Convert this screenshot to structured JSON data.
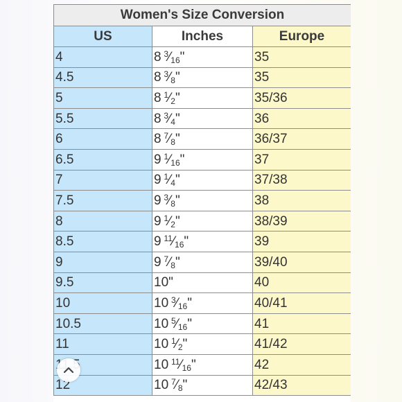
{
  "table": {
    "title": "Women's Size Conversion",
    "headers": [
      "US",
      "Inches",
      "Europe"
    ],
    "rows": [
      {
        "us": "4",
        "inches": {
          "whole": "8",
          "num": "3",
          "den": "16"
        },
        "eu": "35"
      },
      {
        "us": "4.5",
        "inches": {
          "whole": "8",
          "num": "3",
          "den": "8"
        },
        "eu": "35"
      },
      {
        "us": "5",
        "inches": {
          "whole": "8",
          "num": "1",
          "den": "2"
        },
        "eu": "35/36"
      },
      {
        "us": "5.5",
        "inches": {
          "whole": "8",
          "num": "3",
          "den": "4"
        },
        "eu": "36"
      },
      {
        "us": "6",
        "inches": {
          "whole": "8",
          "num": "7",
          "den": "8"
        },
        "eu": "36/37"
      },
      {
        "us": "6.5",
        "inches": {
          "whole": "9",
          "num": "1",
          "den": "16"
        },
        "eu": "37"
      },
      {
        "us": "7",
        "inches": {
          "whole": "9",
          "num": "1",
          "den": "4"
        },
        "eu": "37/38"
      },
      {
        "us": "7.5",
        "inches": {
          "whole": "9",
          "num": "3",
          "den": "8"
        },
        "eu": "38"
      },
      {
        "us": "8",
        "inches": {
          "whole": "9",
          "num": "1",
          "den": "2"
        },
        "eu": "38/39"
      },
      {
        "us": "8.5",
        "inches": {
          "whole": "9",
          "num": "11",
          "den": "16"
        },
        "eu": "39"
      },
      {
        "us": "9",
        "inches": {
          "whole": "9",
          "num": "7",
          "den": "8"
        },
        "eu": "39/40"
      },
      {
        "us": "9.5",
        "inches": {
          "whole": "10",
          "num": "",
          "den": ""
        },
        "eu": "40"
      },
      {
        "us": "10",
        "inches": {
          "whole": "10",
          "num": "3",
          "den": "16"
        },
        "eu": "40/41"
      },
      {
        "us": "10.5",
        "inches": {
          "whole": "10",
          "num": "5",
          "den": "16"
        },
        "eu": "41"
      },
      {
        "us": "11",
        "inches": {
          "whole": "10",
          "num": "1",
          "den": "2"
        },
        "eu": "41/42"
      },
      {
        "us": "11.5",
        "inches": {
          "whole": "10",
          "num": "11",
          "den": "16"
        },
        "eu": "42"
      },
      {
        "us": "12",
        "inches": {
          "whole": "10",
          "num": "7",
          "den": "8"
        },
        "eu": "42/43"
      }
    ]
  },
  "colors": {
    "us_column": "#c6e6fb",
    "inches_column": "#ffffff",
    "europe_column": "#fdf8c9",
    "title_background": "#ededed",
    "border": "#8c8c8c"
  },
  "icons": {
    "scroll_up": "chevron-up-icon"
  }
}
